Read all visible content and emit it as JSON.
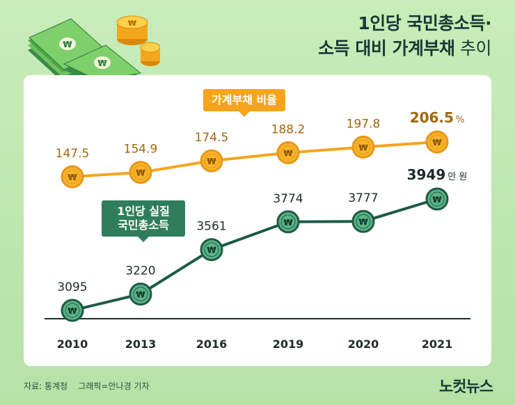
{
  "title": {
    "line1": "1인당 국민총소득·",
    "line2_bold": "소득 대비 가계부채",
    "line2_light": " 추이"
  },
  "chart_data": {
    "type": "line",
    "categories": [
      "2010",
      "2013",
      "2016",
      "2019",
      "2020",
      "2021"
    ],
    "series": [
      {
        "name": "가계부채 비율",
        "values": [
          147.5,
          154.9,
          174.5,
          188.2,
          197.8,
          206.5
        ],
        "labels": [
          "147.5",
          "154.9",
          "174.5",
          "188.2",
          "197.8",
          "206.5"
        ],
        "last_unit": "%",
        "color": "#f6a41c",
        "marker": "gold-coin"
      },
      {
        "name": "1인당 실질 국민총소득",
        "name_lines": [
          "1인당 실질",
          "국민총소득"
        ],
        "values": [
          3095,
          3220,
          3561,
          3774,
          3777,
          3949
        ],
        "labels": [
          "3095",
          "3220",
          "3561",
          "3774",
          "3777",
          "3949"
        ],
        "last_unit": "만 원",
        "color": "#1e5a45",
        "marker": "green-coin"
      }
    ],
    "coin_symbol": "₩",
    "label_color": "#a0660e",
    "income_label_color": "#1f2a2a"
  },
  "footer": {
    "source": "자료: 통계청    그래픽=안나경 기자",
    "logo": "노컷뉴스"
  }
}
